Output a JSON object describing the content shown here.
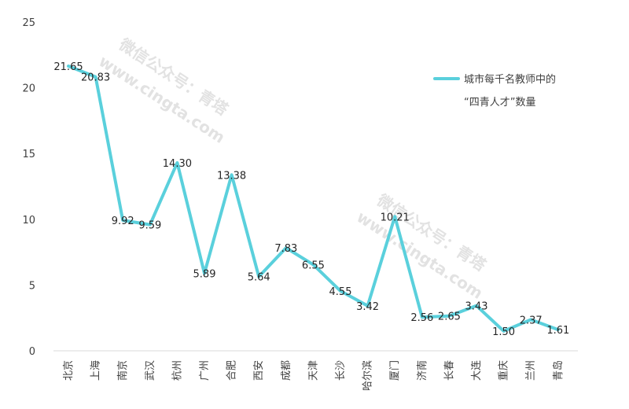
{
  "chart_data": {
    "type": "line",
    "categories": [
      "北京",
      "上海",
      "南京",
      "武汉",
      "杭州",
      "广州",
      "合肥",
      "西安",
      "成都",
      "天津",
      "长沙",
      "哈尔滨",
      "厦门",
      "济南",
      "长春",
      "大连",
      "重庆",
      "兰州",
      "青岛"
    ],
    "series": [
      {
        "name": "城市每千名教师中的“四青人才”数量",
        "values": [
          21.65,
          20.83,
          9.92,
          9.59,
          14.3,
          5.89,
          13.38,
          5.64,
          7.83,
          6.55,
          4.55,
          3.42,
          10.21,
          2.56,
          2.65,
          3.43,
          1.5,
          2.37,
          1.61
        ],
        "labels": [
          "21.65",
          "20.83",
          "9.92",
          "9.59",
          "14.30",
          "5.89",
          "13.38",
          "5.64",
          "7.83",
          "6.55",
          "4.55",
          "3.42",
          "10.21",
          "2.56",
          "2.65",
          "3.43",
          "1.50",
          "2.37",
          "1.61"
        ],
        "color": "#5ad0dc"
      }
    ],
    "ylim": [
      0,
      25
    ],
    "yticks": [
      "0",
      "5",
      "10",
      "15",
      "20",
      "25"
    ],
    "legend": {
      "position": "right",
      "line1": "城市每千名教师中的",
      "line2": "“四青人才”数量"
    },
    "grid": false,
    "title": "",
    "xlabel": "",
    "ylabel": ""
  },
  "watermark": {
    "line1": "微信公众号：青塔",
    "line2": "www.cingta.com"
  }
}
